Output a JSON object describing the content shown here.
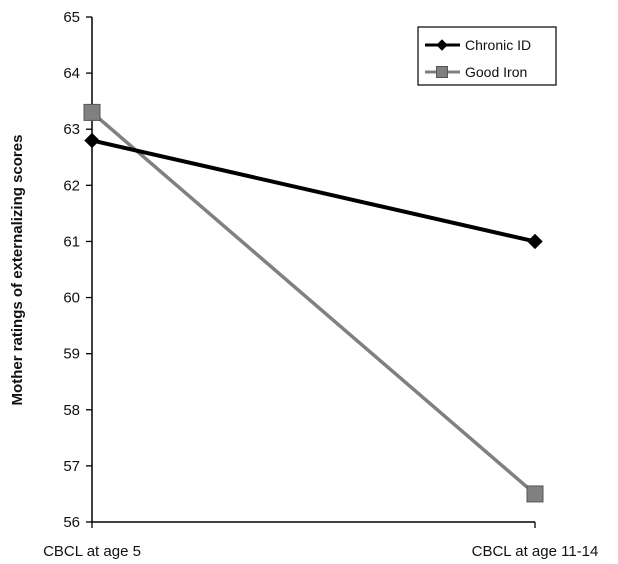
{
  "chart_data": {
    "type": "line",
    "title": "",
    "xlabel": "",
    "ylabel": "Mother ratings of externalizing scores",
    "categories": [
      "CBCL at age 5",
      "CBCL at age 11-14"
    ],
    "ylim": [
      56,
      65
    ],
    "yticks": [
      "56",
      "57",
      "58",
      "59",
      "60",
      "61",
      "62",
      "63",
      "64",
      "65"
    ],
    "grid": false,
    "legend_position": "top-right",
    "series": [
      {
        "name": "Chronic ID",
        "values": [
          62.8,
          61.0
        ],
        "color": "#000000",
        "marker": "diamond"
      },
      {
        "name": "Good Iron",
        "values": [
          63.3,
          56.5
        ],
        "color": "#808080",
        "marker": "square"
      }
    ]
  }
}
